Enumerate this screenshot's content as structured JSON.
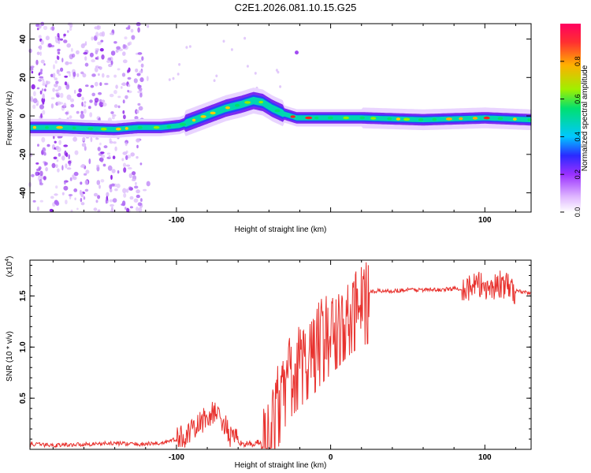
{
  "title": "C2E1.2026.081.10.15.G25",
  "chart_data": [
    {
      "type": "heatmap",
      "name": "spectrogram",
      "xlabel": "Height of straight line (km)",
      "ylabel": "Frequency (Hz)",
      "xlim": [
        -195,
        130
      ],
      "ylim": [
        -50,
        48
      ],
      "xticks": [
        -100,
        0,
        100
      ],
      "yticks": [
        40,
        20,
        0,
        -20,
        -40
      ],
      "x_tick_labels": [
        "-100",
        "",
        "100"
      ],
      "y_tick_labels": [
        "40",
        "20",
        "0",
        "-20",
        "-40"
      ],
      "colorbar": {
        "label": "Normalized spectral amplitude",
        "range": [
          0,
          1
        ],
        "ticks": [
          0.0,
          0.2,
          0.4,
          0.6,
          0.8
        ],
        "tick_labels": [
          "0.0",
          "0.2",
          "0.4",
          "0.6",
          "0.8"
        ],
        "colors": [
          "#ffffff",
          "#c77dff",
          "#7a00e6",
          "#3030ff",
          "#00c8ff",
          "#00e87a",
          "#b8f000",
          "#ffb000",
          "#ff2020"
        ]
      },
      "ridge": {
        "x": [
          -195,
          -175,
          -160,
          -140,
          -125,
          -110,
          -98,
          -88,
          -78,
          -68,
          -58,
          -50,
          -44,
          -38,
          -30,
          -22,
          -12,
          0,
          20,
          60,
          100,
          130
        ],
        "freq": [
          -6,
          -6,
          -6.5,
          -7,
          -6,
          -6,
          -5,
          -2,
          1,
          4,
          6,
          8,
          7,
          4,
          1,
          -1,
          -1,
          -1,
          -1,
          -2,
          -1,
          -2
        ]
      },
      "noise_region_x": [
        -195,
        -118
      ]
    },
    {
      "type": "line",
      "name": "snr",
      "xlabel": "Height of straight line (km)",
      "ylabel": "SNR (10 * v/v)",
      "multiplier_label": "(x10",
      "multiplier_exp": "4",
      "xlim": [
        -195,
        130
      ],
      "ylim": [
        0,
        1.85
      ],
      "xticks": [
        -100,
        0,
        100
      ],
      "yticks": [
        0.5,
        1.0,
        1.5
      ],
      "x_tick_labels": [
        "-100",
        "0",
        "100"
      ],
      "y_tick_labels": [
        "0.5",
        "1.0",
        "1.5"
      ],
      "color": "#e8322e",
      "series": [
        {
          "name": "SNR",
          "x": [
            -195,
            -180,
            -160,
            -140,
            -125,
            -110,
            -100,
            -95,
            -90,
            -85,
            -80,
            -75,
            -70,
            -65,
            -60,
            -55,
            -50,
            -45,
            -40,
            -35,
            -30,
            -25,
            -20,
            -15,
            -10,
            -5,
            0,
            5,
            10,
            15,
            20,
            25,
            30,
            40,
            50,
            60,
            70,
            80,
            90,
            95,
            100,
            105,
            110,
            115,
            120,
            130
          ],
          "y": [
            0.05,
            0.04,
            0.05,
            0.06,
            0.05,
            0.06,
            0.1,
            0.13,
            0.17,
            0.25,
            0.32,
            0.36,
            0.28,
            0.12,
            0.07,
            0.05,
            0.05,
            0.08,
            0.18,
            0.45,
            0.7,
            0.82,
            0.9,
            0.98,
            1.05,
            1.15,
            1.22,
            1.3,
            1.38,
            1.45,
            1.5,
            1.53,
            1.55,
            1.55,
            1.56,
            1.56,
            1.56,
            1.57,
            1.58,
            1.6,
            1.6,
            1.58,
            1.62,
            1.58,
            1.55,
            1.53
          ]
        }
      ]
    }
  ]
}
